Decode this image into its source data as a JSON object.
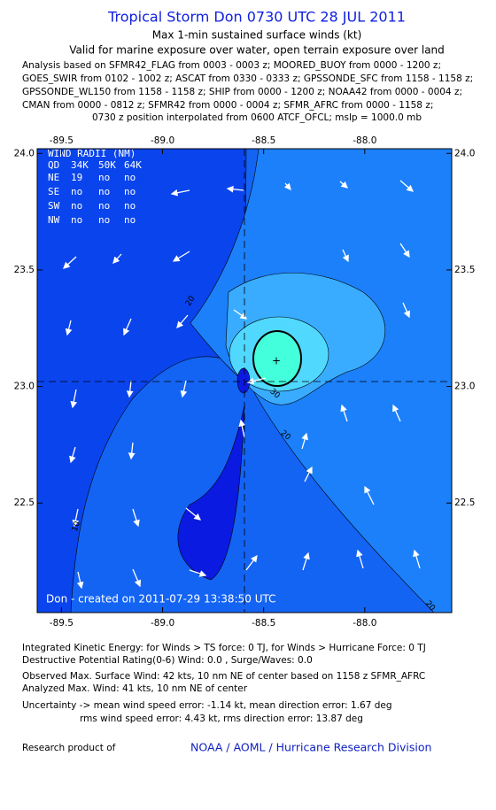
{
  "header": {
    "title": "Tropical Storm Don 0730 UTC 28 JUL 2011",
    "subtitle": "Max 1-min sustained surface winds (kt)",
    "validity": "Valid for marine exposure over water, open terrain exposure over land",
    "analysis_lines": [
      "Analysis based on SFMR42_FLAG from 0003 - 0003 z; MOORED_BUOY from 0000 - 1200 z;",
      "GOES_SWIR from 0102 - 1002 z; ASCAT from 0330 - 0333 z; GPSSONDE_SFC from 1158 - 1158 z;",
      "GPSSONDE_WL150 from 1158 - 1158 z; SHIP from 0000 - 1200 z; NOAA42 from 0000 - 0004 z;",
      "CMAN from 0000 - 0812 z; SFMR42 from 0000 - 0004 z; SFMR_AFRC from 0000 - 1158 z;"
    ],
    "position_note": "0730 z position interpolated from 0600 ATCF_OFCL; mslp = 1000.0 mb"
  },
  "map": {
    "xlim": [
      -89.62,
      -87.57
    ],
    "ylim": [
      22.03,
      24.02
    ],
    "xticks": [
      -89.5,
      {
        "value": -89,
        "label": "-89.0"
      },
      -88.5,
      {
        "value": -88,
        "label": "-88.0"
      }
    ],
    "yticks": [
      {
        "value": 24,
        "label": "24.0"
      },
      23.5,
      {
        "value": 23,
        "label": "23.0"
      },
      22.5
    ],
    "center": {
      "lon": -88.6,
      "lat": 23.02
    },
    "credit": "Don - created on 2011-07-29 13:38:50 UTC",
    "contour_labels": [
      "20",
      "30",
      "20",
      "10",
      "20"
    ],
    "wind_radii": {
      "title": "WIND RADII (NM)",
      "columns": [
        "QD",
        "34K",
        "50K",
        "64K"
      ],
      "rows": [
        [
          "NE",
          "19",
          "no",
          "no"
        ],
        [
          "SE",
          "no",
          "no",
          "no"
        ],
        [
          "SW",
          "no",
          "no",
          "no"
        ],
        [
          "NW",
          "no",
          "no",
          "no"
        ]
      ]
    }
  },
  "footer": {
    "lines": [
      "Integrated Kinetic Energy:  for Winds > TS force: 0 TJ,  for Winds > Hurricane Force: 0 TJ",
      "Destructive Potential Rating(0-6)   Wind: 0.0 , Surge/Waves: 0.0",
      "Observed Max. Surface Wind: 42 kts, 10 nm NE of center based on 1158 z SFMR_AFRC",
      "Analyzed Max. Wind: 41 kts, 10 nm NE of center",
      "Uncertainty -> mean wind speed error:  -1.14 kt,   mean direction error: 1.67 deg",
      "rms wind speed error: 4.43 kt,   rms direction error: 13.87 deg"
    ],
    "research": "Research product of",
    "org": "NOAA / AOML / Hurricane Research Division"
  }
}
